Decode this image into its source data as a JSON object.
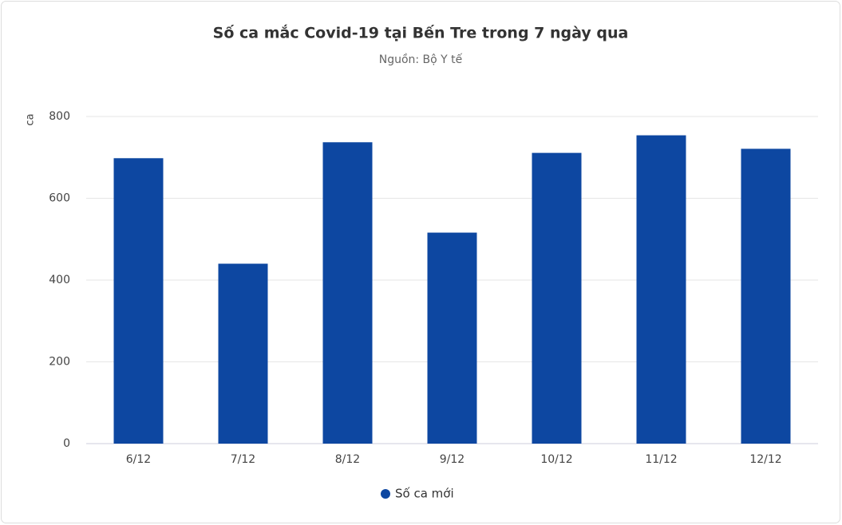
{
  "chart_data": {
    "type": "bar",
    "title": "Số ca mắc Covid-19 tại Bến Tre trong 7 ngày qua",
    "subtitle": "Nguồn: Bộ Y tế",
    "y_label": "ca",
    "categories": [
      "6/12",
      "7/12",
      "8/12",
      "9/12",
      "10/12",
      "11/12",
      "12/12"
    ],
    "series": [
      {
        "name": "Số ca mới",
        "color": "#0d47a1",
        "values": [
          698,
          440,
          737,
          516,
          711,
          754,
          721
        ]
      }
    ],
    "ylim": [
      0,
      800
    ],
    "yticks": [
      0,
      200,
      400,
      600,
      800
    ],
    "grid": true,
    "legend": "bottom"
  }
}
